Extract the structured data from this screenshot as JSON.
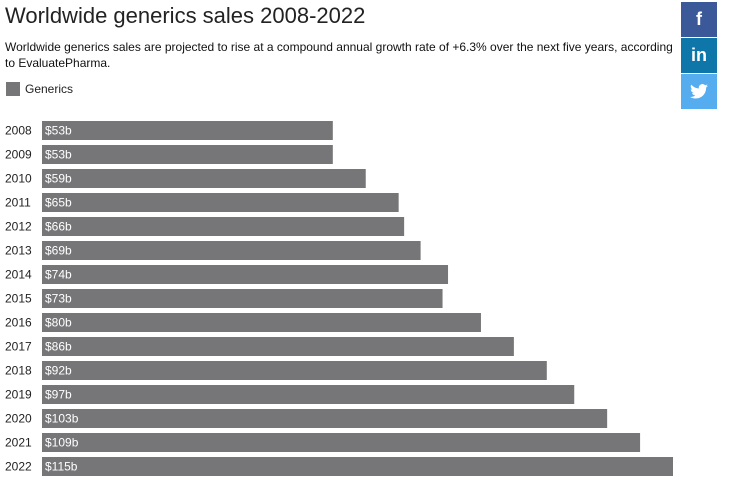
{
  "chart_data": {
    "type": "bar",
    "orientation": "horizontal",
    "title": "Worldwide generics sales 2008-2022",
    "subtitle": "Worldwide generics sales are projected to rise at a compound annual growth rate of +6.3% over the next five years, according to EvaluatePharma.",
    "categories": [
      "2008",
      "2009",
      "2010",
      "2011",
      "2012",
      "2013",
      "2014",
      "2015",
      "2016",
      "2017",
      "2018",
      "2019",
      "2020",
      "2021",
      "2022"
    ],
    "series": [
      {
        "name": "Generics",
        "color": "#767577",
        "values": [
          53,
          53,
          59,
          65,
          66,
          69,
          74,
          73,
          80,
          86,
          92,
          97,
          103,
          109,
          115
        ],
        "value_labels": [
          "$53b",
          "$53b",
          "$59b",
          "$65b",
          "$66b",
          "$69b",
          "$74b",
          "$73b",
          "$80b",
          "$86b",
          "$92b",
          "$97b",
          "$103b",
          "$109b",
          "$115b"
        ]
      }
    ]
  },
  "share_buttons": {
    "facebook": "f",
    "linkedin": "in"
  }
}
